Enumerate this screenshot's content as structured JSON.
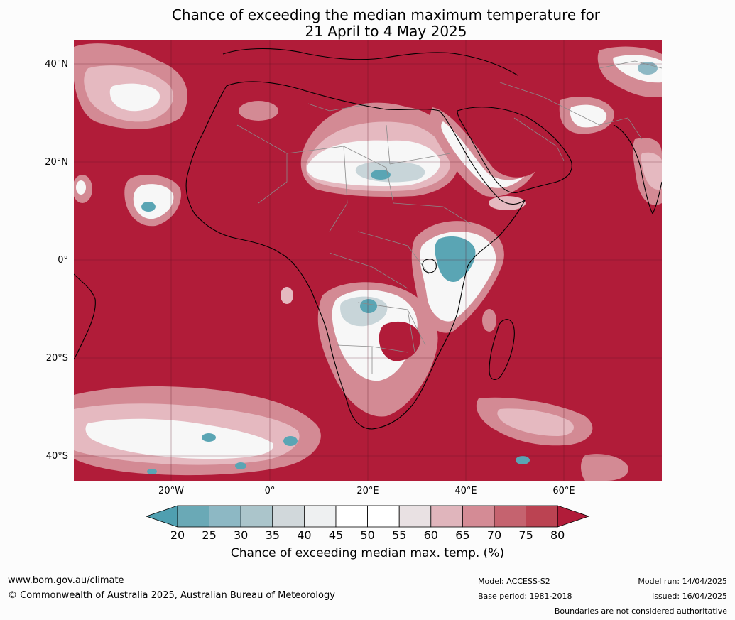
{
  "title_line1": "Chance of exceeding the median maximum temperature for",
  "title_line2": "21 April to 4 May 2025",
  "lat_labels": [
    "40°N",
    "20°N",
    "0°",
    "20°S",
    "40°S"
  ],
  "lon_labels": [
    "20°W",
    "0°",
    "20°E",
    "40°E",
    "60°E"
  ],
  "colorbar": {
    "ticks": [
      "20",
      "25",
      "30",
      "35",
      "40",
      "45",
      "50",
      "55",
      "60",
      "65",
      "70",
      "75",
      "80"
    ],
    "label": "Chance of exceeding median max. temp. (%)",
    "colors": [
      "#4f9fb0",
      "#6aa9b6",
      "#8db8c4",
      "#abc5cb",
      "#d1d8db",
      "#eef0f1",
      "#ffffff",
      "#ffffff",
      "#e9e1e3",
      "#e0b5bc",
      "#d48b95",
      "#c5636f",
      "#bb4352",
      "#b11c39"
    ]
  },
  "map_colors": {
    "background": "#b11c39",
    "light_red": "#d38a94",
    "pink": "#e5b9c0",
    "white": "#f7f7f7",
    "pale_blue": "#c8d5d9",
    "teal": "#5aa5b4",
    "coast": "#000000",
    "border": "#8a8a8a"
  },
  "footer": {
    "website": "www.bom.gov.au/climate",
    "copyright": "© Commonwealth of Australia 2025, Australian Bureau of Meteorology",
    "model": "Model: ACCESS-S2",
    "base_period": "Base period: 1981-2018",
    "model_run": "Model run: 14/04/2025",
    "issued": "Issued: 16/04/2025",
    "disclaimer": "Boundaries are not considered authoritative"
  }
}
